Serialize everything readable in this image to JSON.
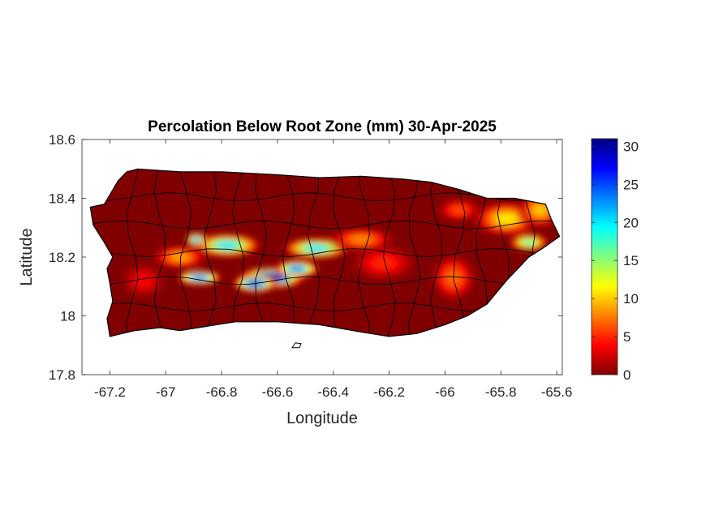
{
  "chart_data": {
    "type": "heatmap",
    "title": "Percolation Below Root Zone (mm) 30-Apr-2025",
    "xlabel": "Longitude",
    "ylabel": "Latitude",
    "xlim": [
      -67.3,
      -65.58
    ],
    "ylim": [
      17.8,
      18.6
    ],
    "xticks": [
      -67.2,
      -67,
      -66.8,
      -66.6,
      -66.4,
      -66.2,
      -66,
      -65.8,
      -65.6
    ],
    "xtick_labels": [
      "-67.2",
      "-67",
      "-66.8",
      "-66.6",
      "-66.4",
      "-66.2",
      "-66",
      "-65.8",
      "-65.6"
    ],
    "yticks": [
      17.8,
      18,
      18.2,
      18.4,
      18.6
    ],
    "ytick_labels": [
      "17.8",
      "18",
      "18.2",
      "18.4",
      "18.6"
    ],
    "colorbar": {
      "colormap": "jet",
      "min": 0,
      "max": 31,
      "ticks": [
        0,
        5,
        10,
        15,
        20,
        25,
        30
      ],
      "tick_labels": [
        "0",
        "5",
        "10",
        "15",
        "20",
        "25",
        "30"
      ]
    },
    "background_value": 0,
    "hotspots": [
      {
        "lon": -66.62,
        "lat": 18.13,
        "value": 31,
        "spread_lon": 0.06,
        "spread_lat": 0.018
      },
      {
        "lon": -66.68,
        "lat": 18.11,
        "value": 28,
        "spread_lon": 0.04,
        "spread_lat": 0.015
      },
      {
        "lon": -66.88,
        "lat": 18.13,
        "value": 26,
        "spread_lon": 0.04,
        "spread_lat": 0.012
      },
      {
        "lon": -66.78,
        "lat": 18.24,
        "value": 20,
        "spread_lon": 0.06,
        "spread_lat": 0.02
      },
      {
        "lon": -66.46,
        "lat": 18.23,
        "value": 20,
        "spread_lon": 0.06,
        "spread_lat": 0.018
      },
      {
        "lon": -66.53,
        "lat": 18.16,
        "value": 24,
        "spread_lon": 0.04,
        "spread_lat": 0.015
      },
      {
        "lon": -66.89,
        "lat": 18.26,
        "value": 22,
        "spread_lon": 0.02,
        "spread_lat": 0.012
      },
      {
        "lon": -66.3,
        "lat": 18.26,
        "value": 8,
        "spread_lon": 0.06,
        "spread_lat": 0.02
      },
      {
        "lon": -66.95,
        "lat": 18.2,
        "value": 9,
        "spread_lon": 0.05,
        "spread_lat": 0.02
      },
      {
        "lon": -65.78,
        "lat": 18.33,
        "value": 11,
        "spread_lon": 0.06,
        "spread_lat": 0.03
      },
      {
        "lon": -65.66,
        "lat": 18.36,
        "value": 10,
        "spread_lon": 0.04,
        "spread_lat": 0.03
      },
      {
        "lon": -65.7,
        "lat": 18.25,
        "value": 17,
        "spread_lon": 0.035,
        "spread_lat": 0.015
      },
      {
        "lon": -65.97,
        "lat": 18.13,
        "value": 7,
        "spread_lon": 0.04,
        "spread_lat": 0.04
      },
      {
        "lon": -65.95,
        "lat": 18.36,
        "value": 6,
        "spread_lon": 0.04,
        "spread_lat": 0.02
      },
      {
        "lon": -66.22,
        "lat": 18.18,
        "value": 5,
        "spread_lon": 0.06,
        "spread_lat": 0.03
      },
      {
        "lon": -67.08,
        "lat": 18.12,
        "value": 4,
        "spread_lon": 0.04,
        "spread_lat": 0.03
      }
    ]
  }
}
